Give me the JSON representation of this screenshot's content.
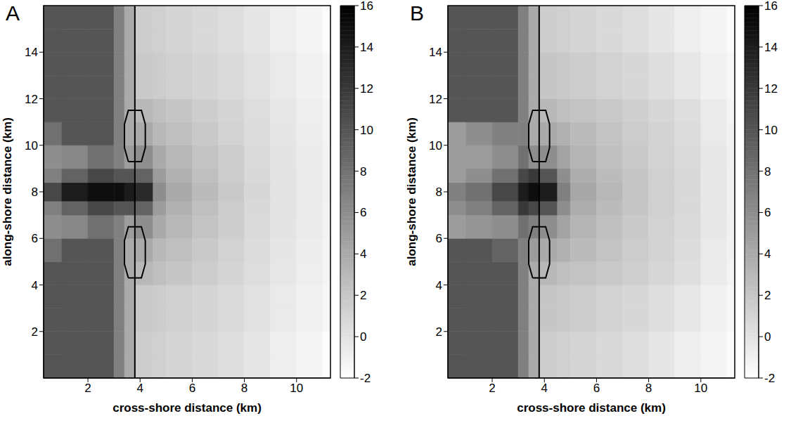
{
  "chart_data": [
    {
      "type": "heatmap",
      "title": "A",
      "x_label": "cross-shore distance (km)",
      "y_label": "along-shore distance (km)",
      "xlim": [
        0.3,
        11.3
      ],
      "xticks": [
        2,
        4,
        6,
        8,
        10
      ],
      "ylim": [
        0,
        16
      ],
      "yticks": [
        2,
        4,
        6,
        8,
        10,
        12,
        14
      ],
      "x_edges": [
        0.3,
        1,
        2,
        3,
        3.4,
        3.8,
        4.5,
        5,
        6,
        7,
        8,
        9,
        10,
        11,
        11.3
      ],
      "y_edges": [
        0,
        1,
        2,
        3,
        4,
        5,
        6,
        7,
        7.6,
        8.4,
        9,
        10,
        11,
        12,
        13,
        14,
        15,
        16
      ],
      "cells": [
        [
          10,
          10,
          10,
          7,
          4,
          1.5,
          1.3,
          1,
          0.7,
          0.3,
          -0.2,
          -0.8,
          -1.3,
          -1.7
        ],
        [
          10,
          10,
          10,
          7,
          4,
          1.5,
          1.3,
          1,
          0.7,
          0.3,
          -0.2,
          -0.8,
          -1.3,
          -1.7
        ],
        [
          10,
          10,
          10,
          7,
          4,
          1.8,
          1.6,
          1.3,
          1,
          0.6,
          0.1,
          -0.5,
          -1,
          -1.4
        ],
        [
          10,
          10,
          10,
          7,
          4,
          1.8,
          1.6,
          1.3,
          1,
          0.6,
          0.1,
          -0.5,
          -1,
          -1.4
        ],
        [
          10,
          10,
          10,
          7,
          4,
          3,
          2.5,
          2,
          1.5,
          1,
          0.4,
          -0.3,
          -0.8,
          -1.2
        ],
        [
          8,
          10,
          10,
          7,
          4,
          4,
          3,
          2.5,
          1.8,
          1.2,
          0.5,
          -0.2,
          -0.7,
          -1.2
        ],
        [
          6,
          6.5,
          8,
          7,
          5,
          6,
          4,
          3,
          2.2,
          1.5,
          0.6,
          -0.1,
          -0.6,
          -1.1
        ],
        [
          7,
          9,
          11,
          10,
          10,
          9,
          5,
          3.5,
          2.5,
          1.6,
          0.7,
          0,
          -0.6,
          -1.1
        ],
        [
          11,
          14,
          15,
          15,
          14,
          13,
          6,
          4,
          2.8,
          1.8,
          0.8,
          0,
          -0.5,
          -1
        ],
        [
          7,
          9,
          11,
          10,
          10,
          9,
          5,
          3.5,
          2.5,
          1.6,
          0.7,
          0,
          -0.6,
          -1.1
        ],
        [
          6,
          6.5,
          8,
          7,
          5,
          6,
          4,
          3,
          2.2,
          1.5,
          0.6,
          -0.1,
          -0.6,
          -1.1
        ],
        [
          8,
          10,
          10,
          7,
          4,
          4,
          3,
          2.5,
          1.8,
          1.2,
          0.5,
          -0.2,
          -0.7,
          -1.2
        ],
        [
          10,
          10,
          10,
          7,
          4,
          3,
          2.5,
          2,
          1.5,
          1,
          0.4,
          -0.3,
          -0.8,
          -1.2
        ],
        [
          10,
          10,
          10,
          7,
          4,
          1.8,
          1.6,
          1.3,
          1,
          0.6,
          0.1,
          -0.5,
          -1,
          -1.4
        ],
        [
          10,
          10,
          10,
          7,
          4,
          1.8,
          1.6,
          1.3,
          1,
          0.6,
          0.1,
          -0.5,
          -1,
          -1.4
        ],
        [
          10,
          10,
          10,
          7,
          4,
          1.5,
          1.3,
          1,
          0.7,
          0.3,
          -0.2,
          -0.8,
          -1.3,
          -1.7
        ],
        [
          10,
          10,
          10,
          7,
          4,
          1.5,
          1.3,
          1,
          0.7,
          0.3,
          -0.2,
          -0.8,
          -1.3,
          -1.7
        ]
      ],
      "colorbar": {
        "range": [
          -2,
          16
        ],
        "ticks": [
          -2,
          0,
          2,
          4,
          6,
          8,
          10,
          12,
          14,
          16
        ]
      },
      "shoreline_x": 3.8,
      "islands": [
        [
          [
            3.55,
            4.3
          ],
          [
            4.05,
            4.3
          ],
          [
            4.2,
            4.9
          ],
          [
            4.2,
            5.9
          ],
          [
            4.05,
            6.5
          ],
          [
            3.55,
            6.5
          ],
          [
            3.4,
            5.9
          ],
          [
            3.4,
            4.9
          ],
          [
            3.55,
            4.3
          ]
        ],
        [
          [
            3.55,
            9.3
          ],
          [
            4.05,
            9.3
          ],
          [
            4.2,
            9.9
          ],
          [
            4.2,
            10.9
          ],
          [
            4.05,
            11.5
          ],
          [
            3.55,
            11.5
          ],
          [
            3.4,
            10.9
          ],
          [
            3.4,
            9.9
          ],
          [
            3.55,
            9.3
          ]
        ]
      ]
    },
    {
      "type": "heatmap",
      "title": "B",
      "x_label": "cross-shore distance (km)",
      "y_label": "along-shore distance (km)",
      "xlim": [
        0.3,
        11.3
      ],
      "xticks": [
        2,
        4,
        6,
        8,
        10
      ],
      "ylim": [
        0,
        16
      ],
      "yticks": [
        2,
        4,
        6,
        8,
        10,
        12,
        14
      ],
      "x_edges": [
        0.3,
        1,
        2,
        3,
        3.4,
        3.8,
        4.5,
        5,
        6,
        7,
        8,
        9,
        10,
        11,
        11.3
      ],
      "y_edges": [
        0,
        1,
        2,
        3,
        4,
        5,
        6,
        7,
        7.6,
        8.4,
        9,
        10,
        11,
        12,
        13,
        14,
        15,
        16
      ],
      "cells": [
        [
          10,
          10,
          10,
          7,
          4,
          1.5,
          1.3,
          1,
          0.7,
          0.3,
          -0.2,
          -0.8,
          -1.3,
          -1.7
        ],
        [
          10,
          10,
          10,
          7,
          4,
          1.5,
          1.3,
          1,
          0.7,
          0.3,
          -0.2,
          -0.8,
          -1.3,
          -1.7
        ],
        [
          10,
          10,
          10,
          7,
          4,
          2,
          1.8,
          1.5,
          1.2,
          0.8,
          0.3,
          -0.3,
          -1,
          -1.4
        ],
        [
          10,
          10,
          10,
          7,
          4,
          2,
          1.8,
          1.5,
          1.2,
          0.8,
          0.3,
          -0.3,
          -1,
          -1.4
        ],
        [
          10,
          10,
          10,
          7,
          4,
          3,
          2.5,
          2.2,
          1.8,
          1.4,
          0.9,
          0.3,
          -0.6,
          -1.2
        ],
        [
          10,
          10,
          9,
          7,
          5,
          4,
          3.5,
          2.8,
          2.2,
          1.6,
          1.1,
          0.5,
          -0.5,
          -1.1
        ],
        [
          5,
          5.5,
          6,
          8,
          7,
          6,
          4.5,
          3.2,
          2.5,
          1.8,
          1.2,
          0.6,
          -0.4,
          -1
        ],
        [
          6,
          7,
          9,
          12,
          11,
          10,
          6,
          3.8,
          2.8,
          2,
          1.3,
          0.7,
          -0.3,
          -1
        ],
        [
          7,
          8,
          11,
          14,
          15,
          14,
          7,
          4.2,
          3,
          2.1,
          1.3,
          0.7,
          -0.3,
          -1
        ],
        [
          5,
          6,
          8,
          11,
          12,
          10,
          6,
          3.8,
          2.8,
          2,
          1.3,
          0.7,
          -0.3,
          -1
        ],
        [
          5,
          5,
          6,
          8,
          6,
          6,
          4.5,
          3.2,
          2.5,
          1.8,
          1.2,
          0.6,
          -0.4,
          -1
        ],
        [
          5,
          6,
          7,
          7,
          4,
          4,
          3.5,
          2.8,
          2.2,
          1.6,
          1.1,
          0.5,
          -0.5,
          -1.1
        ],
        [
          10,
          10,
          10,
          7,
          4,
          3,
          2.5,
          2.2,
          1.8,
          1.4,
          0.9,
          0.3,
          -0.6,
          -1.2
        ],
        [
          10,
          10,
          10,
          7,
          4,
          2,
          1.8,
          1.5,
          1.2,
          0.8,
          0.3,
          -0.3,
          -1,
          -1.4
        ],
        [
          10,
          10,
          10,
          7,
          4,
          2,
          1.8,
          1.5,
          1.2,
          0.8,
          0.3,
          -0.3,
          -1,
          -1.4
        ],
        [
          10,
          10,
          10,
          7,
          4,
          1.5,
          1.3,
          1,
          0.7,
          0.3,
          -0.2,
          -0.8,
          -1.3,
          -1.7
        ],
        [
          10,
          10,
          10,
          7,
          4,
          1.5,
          1.3,
          1,
          0.7,
          0.3,
          -0.2,
          -0.8,
          -1.3,
          -1.7
        ]
      ],
      "colorbar": {
        "range": [
          -2,
          16
        ],
        "ticks": [
          -2,
          0,
          2,
          4,
          6,
          8,
          10,
          12,
          14,
          16
        ]
      },
      "shoreline_x": 3.8,
      "islands": [
        [
          [
            3.55,
            4.3
          ],
          [
            4.05,
            4.3
          ],
          [
            4.2,
            4.9
          ],
          [
            4.2,
            5.9
          ],
          [
            4.05,
            6.5
          ],
          [
            3.55,
            6.5
          ],
          [
            3.4,
            5.9
          ],
          [
            3.4,
            4.9
          ],
          [
            3.55,
            4.3
          ]
        ],
        [
          [
            3.55,
            9.3
          ],
          [
            4.05,
            9.3
          ],
          [
            4.2,
            9.9
          ],
          [
            4.2,
            10.9
          ],
          [
            4.05,
            11.5
          ],
          [
            3.55,
            11.5
          ],
          [
            3.4,
            10.9
          ],
          [
            3.4,
            9.9
          ],
          [
            3.55,
            9.3
          ]
        ]
      ]
    }
  ]
}
